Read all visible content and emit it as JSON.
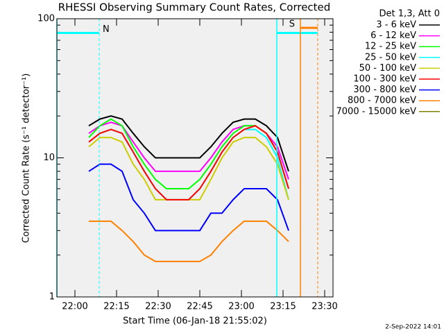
{
  "chart_data": {
    "type": "line",
    "title": "RHESSI Observing Summary Count Rates, Corrected",
    "legend_title": "Det 1,3, Att 0",
    "xlabel": "Start Time (06-Jan-18 21:55:02)",
    "ylabel": "Corrected Count Rate (s⁻¹ detector⁻¹)",
    "footer": "2-Sep-2022 14:01",
    "log_y": true,
    "xlim": [
      1313.5,
      1413
    ],
    "ylim": [
      1,
      100
    ],
    "xticks": [
      {
        "value": 1320,
        "label": "22:00"
      },
      {
        "value": 1335,
        "label": "22:15"
      },
      {
        "value": 1350,
        "label": "22:30"
      },
      {
        "value": 1365,
        "label": "22:45"
      },
      {
        "value": 1380,
        "label": "23:00"
      },
      {
        "value": 1395,
        "label": "23:15"
      },
      {
        "value": 1410,
        "label": "23:30"
      }
    ],
    "yticks": [
      1,
      10,
      100
    ],
    "yminorticks": [
      2,
      3,
      4,
      5,
      6,
      7,
      8,
      9,
      20,
      30,
      40,
      50,
      60,
      70,
      80,
      90
    ],
    "x": [
      1325,
      1329,
      1333,
      1337,
      1341,
      1345,
      1349,
      1353,
      1357,
      1361,
      1365,
      1369,
      1373,
      1377,
      1381,
      1385,
      1389,
      1393,
      1397
    ],
    "series": [
      {
        "name": "3 - 6 keV",
        "color": "#000000",
        "values": [
          17,
          19,
          20,
          19,
          15,
          12,
          10,
          10,
          10,
          10,
          10,
          12,
          15,
          18,
          19,
          19,
          17,
          14,
          8
        ]
      },
      {
        "name": "6 - 12 keV",
        "color": "#ff00ff",
        "values": [
          15,
          17,
          18,
          17,
          13,
          10,
          8,
          8,
          8,
          8,
          8,
          10,
          13,
          16,
          17,
          17,
          15,
          12,
          7
        ]
      },
      {
        "name": "12 - 25 keV",
        "color": "#00ff00",
        "values": [
          14,
          17,
          19,
          17,
          12,
          9,
          7,
          6,
          6,
          6,
          7,
          9,
          12,
          15,
          17,
          17,
          15,
          11,
          6
        ]
      },
      {
        "name": "25 - 50 keV",
        "color": "#00ffff",
        "values": [
          13,
          15,
          16,
          15,
          11,
          8,
          6,
          5,
          5,
          5,
          6,
          8,
          11,
          14,
          16,
          16,
          14,
          10,
          5
        ]
      },
      {
        "name": "50 - 100 keV",
        "color": "#cccc00",
        "values": [
          12,
          14,
          14,
          13,
          9,
          7,
          5,
          5,
          5,
          5,
          5,
          7,
          10,
          13,
          14,
          14,
          12,
          9,
          5
        ]
      },
      {
        "name": "100 - 300 keV",
        "color": "#ff0000",
        "values": [
          13,
          15,
          16,
          15,
          11,
          8,
          6,
          5,
          5,
          5,
          6,
          8,
          11,
          14,
          16,
          17,
          15,
          11,
          6
        ]
      },
      {
        "name": "300 - 800 keV",
        "color": "#0000ff",
        "values": [
          8,
          9,
          9,
          8,
          5,
          4,
          3,
          3,
          3,
          3,
          3,
          4,
          4,
          5,
          6,
          6,
          6,
          5,
          3
        ]
      },
      {
        "name": "800 - 7000 keV",
        "color": "#ff8000",
        "values": [
          3.5,
          3.5,
          3.5,
          3,
          2.5,
          2,
          1.8,
          1.8,
          1.8,
          1.8,
          1.8,
          2,
          2.5,
          3,
          3.5,
          3.5,
          3.5,
          3,
          2.5
        ]
      },
      {
        "name": "7000 - 15000 keV",
        "color": "#808000",
        "values": [
          null,
          null,
          null,
          null,
          null,
          null,
          null,
          null,
          null,
          null,
          null,
          null,
          null,
          null,
          null,
          null,
          null,
          null,
          null
        ]
      }
    ],
    "flags": [
      {
        "text": "N",
        "color": "#00ffff",
        "start": 1313.5,
        "end": 1328.75,
        "level": 79
      },
      {
        "color": "#00ffff",
        "start": 1392.75,
        "end": 1407.5,
        "level": 79
      },
      {
        "text": "S",
        "color": "#ff8000",
        "start": 1401.25,
        "end": 1407.5,
        "level": 86
      }
    ]
  }
}
